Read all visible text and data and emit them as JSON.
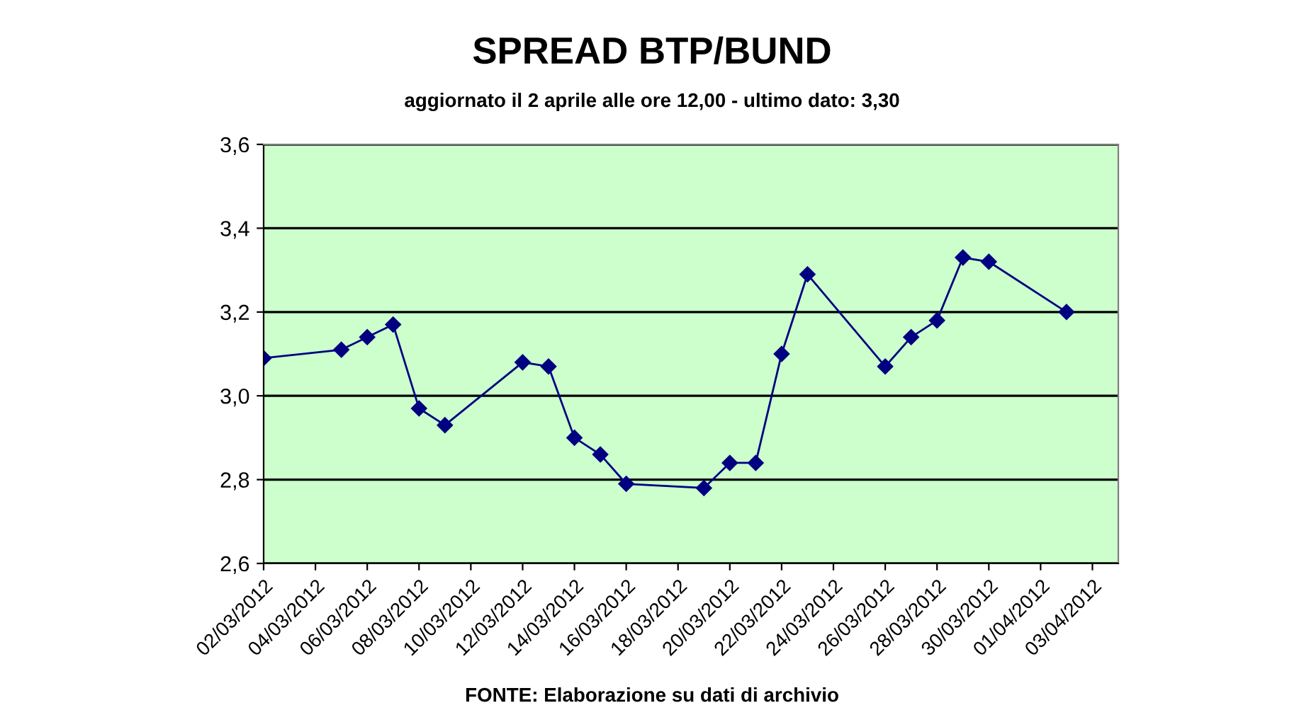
{
  "chart_data": {
    "type": "line",
    "title": "SPREAD BTP/BUND",
    "subtitle": "aggiornato il 2 aprile alle ore 12,00 - ultimo dato: 3,30",
    "annotations": [
      "FONTE: Elaborazione su dati di archivio"
    ],
    "x": [
      "2012-03-02",
      "2012-03-05",
      "2012-03-06",
      "2012-03-07",
      "2012-03-08",
      "2012-03-09",
      "2012-03-12",
      "2012-03-13",
      "2012-03-14",
      "2012-03-15",
      "2012-03-16",
      "2012-03-19",
      "2012-03-20",
      "2012-03-21",
      "2012-03-22",
      "2012-03-23",
      "2012-03-26",
      "2012-03-27",
      "2012-03-28",
      "2012-03-29",
      "2012-03-30",
      "2012-04-02"
    ],
    "series": [
      {
        "color": "#000080",
        "values": [
          3.09,
          3.11,
          3.14,
          3.17,
          2.97,
          2.93,
          3.08,
          3.07,
          2.9,
          2.86,
          2.79,
          2.78,
          2.84,
          2.84,
          3.1,
          3.29,
          3.07,
          3.14,
          3.18,
          3.33,
          3.32,
          3.2
        ]
      }
    ],
    "xlim": [
      "2012-03-02",
      "2012-04-04"
    ],
    "xticks": [
      {
        "value": "2012-03-02",
        "label": "02/03/2012"
      },
      {
        "value": "2012-03-04",
        "label": "04/03/2012"
      },
      {
        "value": "2012-03-06",
        "label": "06/03/2012"
      },
      {
        "value": "2012-03-08",
        "label": "08/03/2012"
      },
      {
        "value": "2012-03-10",
        "label": "10/03/2012"
      },
      {
        "value": "2012-03-12",
        "label": "12/03/2012"
      },
      {
        "value": "2012-03-14",
        "label": "14/03/2012"
      },
      {
        "value": "2012-03-16",
        "label": "16/03/2012"
      },
      {
        "value": "2012-03-18",
        "label": "18/03/2012"
      },
      {
        "value": "2012-03-20",
        "label": "20/03/2012"
      },
      {
        "value": "2012-03-22",
        "label": "22/03/2012"
      },
      {
        "value": "2012-03-24",
        "label": "24/03/2012"
      },
      {
        "value": "2012-03-26",
        "label": "26/03/2012"
      },
      {
        "value": "2012-03-28",
        "label": "28/03/2012"
      },
      {
        "value": "2012-03-30",
        "label": "30/03/2012"
      },
      {
        "value": "2012-04-01",
        "label": "01/04/2012"
      },
      {
        "value": "2012-04-03",
        "label": "03/04/2012"
      }
    ],
    "ylim": [
      2.6,
      3.6
    ],
    "yticks": [
      {
        "value": 2.6,
        "label": "2,6"
      },
      {
        "value": 2.8,
        "label": "2,8"
      },
      {
        "value": 3.0,
        "label": "3,0"
      },
      {
        "value": 3.2,
        "label": "3,2"
      },
      {
        "value": 3.4,
        "label": "3,4"
      },
      {
        "value": 3.6,
        "label": "3,6"
      }
    ],
    "grid": "y",
    "marker": "diamond",
    "line_style": "solid"
  }
}
